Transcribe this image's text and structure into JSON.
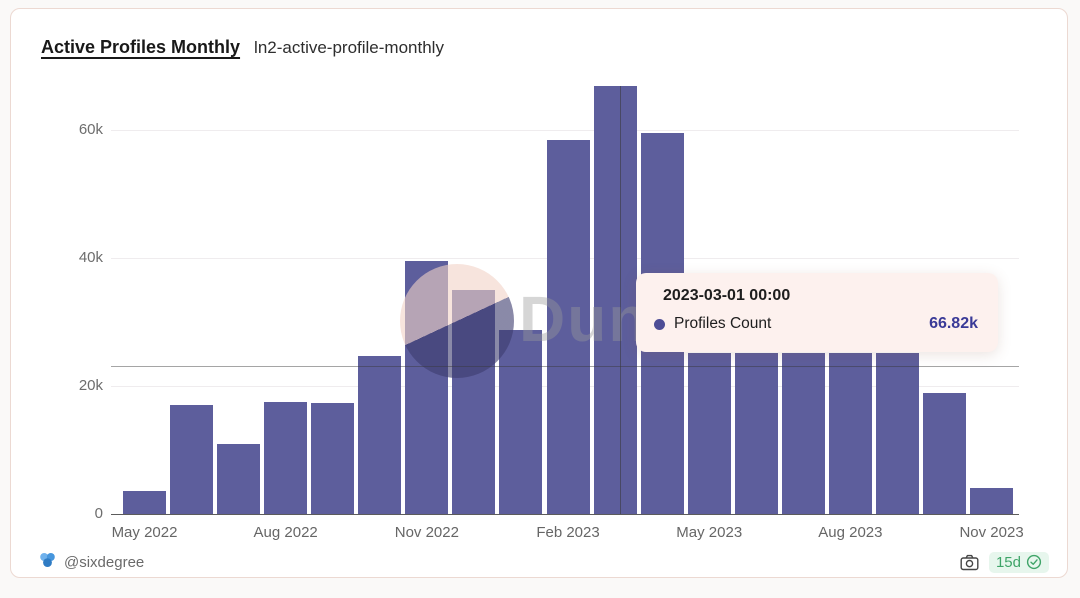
{
  "header": {
    "title": "Active Profiles Monthly",
    "query_name": "ln2-active-profile-monthly"
  },
  "chart_data": {
    "type": "bar",
    "title": "Active Profiles Monthly",
    "series_name": "Profiles Count",
    "categories": [
      "May 2022",
      "Jun 2022",
      "Jul 2022",
      "Aug 2022",
      "Sep 2022",
      "Oct 2022",
      "Nov 2022",
      "Dec 2022",
      "Jan 2023",
      "Feb 2023",
      "Mar 2023",
      "Apr 2023",
      "May 2023",
      "Jun 2023",
      "Jul 2023",
      "Aug 2023",
      "Sep 2023",
      "Oct 2023",
      "Nov 2023"
    ],
    "values": [
      3600,
      17000,
      10900,
      17500,
      17400,
      24700,
      39600,
      35000,
      28700,
      58400,
      66820,
      59600,
      25100,
      25100,
      25100,
      25100,
      25100,
      18900,
      4000
    ],
    "hover_index": 10,
    "xlabel": "",
    "ylabel": "",
    "ylim": [
      0,
      67200
    ],
    "grid": true,
    "legend": "none",
    "bar_color": "#565798",
    "y_ticks": [
      {
        "value": 0,
        "label": "0"
      },
      {
        "value": 20000,
        "label": "20k"
      },
      {
        "value": 40000,
        "label": "40k"
      },
      {
        "value": 60000,
        "label": "60k"
      }
    ],
    "x_ticks": [
      {
        "index": 0,
        "label": "May 2022"
      },
      {
        "index": 3,
        "label": "Aug 2022"
      },
      {
        "index": 6,
        "label": "Nov 2022"
      },
      {
        "index": 9,
        "label": "Feb 2023"
      },
      {
        "index": 12,
        "label": "May 2023"
      },
      {
        "index": 15,
        "label": "Aug 2023"
      },
      {
        "index": 18,
        "label": "Nov 2023"
      }
    ]
  },
  "tooltip": {
    "title": "2023-03-01 00:00",
    "series": "Profiles Count",
    "value": "66.82k",
    "value_color": "#3a3a97",
    "dot_color": "#4d4d96",
    "background": "#fdf1ee"
  },
  "watermark": {
    "text": "Dune"
  },
  "footer": {
    "author": "@sixdegree",
    "staleness": "15d",
    "staleness_color": "#3fa468"
  }
}
